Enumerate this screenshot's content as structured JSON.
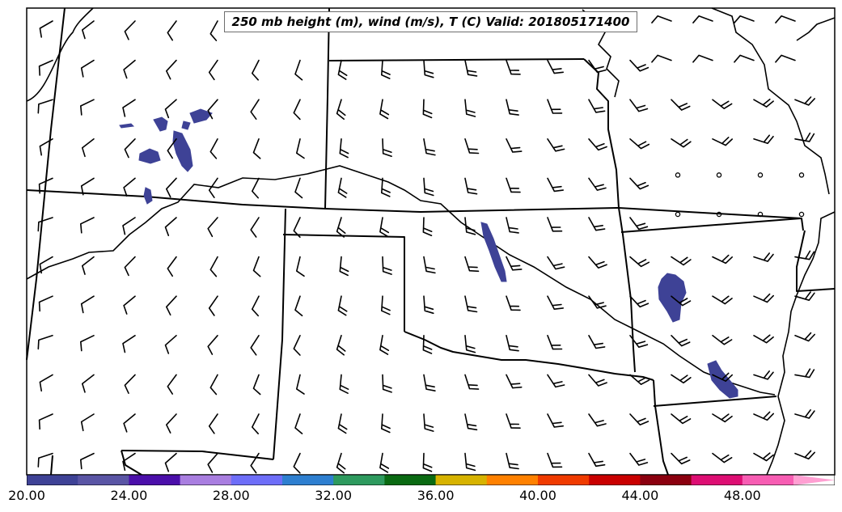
{
  "map": {
    "title": "250 mb height (m), wind (m/s), T (C) Valid: 201805171400",
    "colors": {
      "lines": "#000000",
      "shading": "#3e4296",
      "frame": "#000000"
    }
  },
  "colorbar": {
    "colors": [
      "#3e4296",
      "#5a55a5",
      "#4b0faa",
      "#a97ee0",
      "#6e6ef8",
      "#2e7fd0",
      "#2e9a5e",
      "#0a6a12",
      "#d7b300",
      "#ff8100",
      "#f03b00",
      "#c90000",
      "#8b000f",
      "#dd0e73",
      "#f75db3"
    ],
    "extend_color": "#ff9fd2",
    "tick_labels": [
      "20.00",
      "24.00",
      "28.00",
      "32.00",
      "36.00",
      "40.00",
      "44.00",
      "48.00"
    ]
  }
}
